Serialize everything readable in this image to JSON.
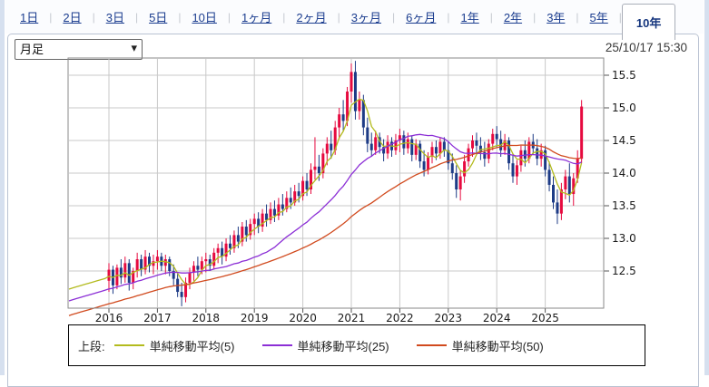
{
  "tabs": {
    "items": [
      {
        "label": "1日",
        "selected": false
      },
      {
        "label": "2日",
        "selected": false
      },
      {
        "label": "3日",
        "selected": false
      },
      {
        "label": "5日",
        "selected": false
      },
      {
        "label": "10日",
        "selected": false
      },
      {
        "label": "1ヶ月",
        "selected": false
      },
      {
        "label": "2ヶ月",
        "selected": false
      },
      {
        "label": "3ヶ月",
        "selected": false
      },
      {
        "label": "6ヶ月",
        "selected": false
      },
      {
        "label": "1年",
        "selected": false
      },
      {
        "label": "2年",
        "selected": false
      },
      {
        "label": "3年",
        "selected": false
      },
      {
        "label": "5年",
        "selected": false
      },
      {
        "label": "10年",
        "selected": true
      }
    ]
  },
  "controls": {
    "interval_select": {
      "value": "月足",
      "options": [
        "月足"
      ]
    },
    "timestamp": "25/10/17 15:30"
  },
  "legend": {
    "prefix": "上段:",
    "items": [
      {
        "label": "単純移動平均(5)",
        "color": "#b3bb1e"
      },
      {
        "label": "単純移動平均(25)",
        "color": "#8c2fd6"
      },
      {
        "label": "単純移動平均(50)",
        "color": "#d14a1e"
      }
    ]
  },
  "chart_data": {
    "type": "candlestick",
    "interval": "monthly",
    "start_month": "2016-01",
    "end_month": "2025-10",
    "x_ticks": [
      "2016",
      "2017",
      "2018",
      "2019",
      "2020",
      "2021",
      "2022",
      "2023",
      "2024",
      "2025"
    ],
    "y_ticks": [
      "12.5",
      "13.0",
      "13.5",
      "14.0",
      "14.5",
      "15.0",
      "15.5"
    ],
    "ylim": [
      11.93,
      15.79
    ],
    "grid": true,
    "legend_position": "bottom",
    "up_color": "#e60a3f",
    "down_color": "#1d3b86",
    "grid_color": "#c9c9c9",
    "border_color": "#8a8a8a",
    "axis_text_color": "#1a1a1a",
    "candles": [
      [
        12.35,
        12.62,
        12.18,
        12.52
      ],
      [
        12.52,
        12.58,
        12.15,
        12.28
      ],
      [
        12.28,
        12.6,
        12.22,
        12.55
      ],
      [
        12.55,
        12.68,
        12.3,
        12.4
      ],
      [
        12.4,
        12.72,
        12.32,
        12.62
      ],
      [
        12.62,
        12.68,
        12.2,
        12.32
      ],
      [
        12.32,
        12.55,
        12.22,
        12.5
      ],
      [
        12.5,
        12.78,
        12.4,
        12.68
      ],
      [
        12.68,
        12.75,
        12.42,
        12.52
      ],
      [
        12.52,
        12.82,
        12.45,
        12.72
      ],
      [
        12.72,
        12.78,
        12.48,
        12.58
      ],
      [
        12.58,
        12.75,
        12.45,
        12.65
      ],
      [
        12.65,
        12.82,
        12.52,
        12.72
      ],
      [
        12.72,
        12.78,
        12.5,
        12.58
      ],
      [
        12.58,
        12.75,
        12.45,
        12.68
      ],
      [
        12.68,
        12.72,
        12.42,
        12.5
      ],
      [
        12.5,
        12.6,
        12.28,
        12.38
      ],
      [
        12.38,
        12.46,
        12.1,
        12.18
      ],
      [
        12.18,
        12.32,
        11.96,
        12.1
      ],
      [
        12.1,
        12.4,
        12.02,
        12.32
      ],
      [
        12.32,
        12.55,
        12.22,
        12.48
      ],
      [
        12.48,
        12.65,
        12.35,
        12.58
      ],
      [
        12.58,
        12.72,
        12.42,
        12.52
      ],
      [
        12.52,
        12.72,
        12.45,
        12.65
      ],
      [
        12.65,
        12.78,
        12.48,
        12.68
      ],
      [
        12.68,
        12.75,
        12.5,
        12.58
      ],
      [
        12.58,
        12.85,
        12.52,
        12.78
      ],
      [
        12.78,
        12.92,
        12.62,
        12.85
      ],
      [
        12.85,
        12.95,
        12.6,
        12.72
      ],
      [
        12.72,
        13.0,
        12.65,
        12.92
      ],
      [
        12.92,
        13.05,
        12.75,
        12.85
      ],
      [
        12.85,
        13.12,
        12.78,
        13.05
      ],
      [
        13.05,
        13.18,
        12.85,
        12.95
      ],
      [
        12.95,
        13.25,
        12.88,
        13.18
      ],
      [
        13.18,
        13.28,
        12.95,
        13.05
      ],
      [
        13.05,
        13.3,
        12.98,
        13.22
      ],
      [
        13.22,
        13.38,
        13.05,
        13.3
      ],
      [
        13.3,
        13.4,
        13.08,
        13.18
      ],
      [
        13.18,
        13.45,
        13.1,
        13.38
      ],
      [
        13.38,
        13.52,
        13.18,
        13.28
      ],
      [
        13.28,
        13.55,
        13.22,
        13.45
      ],
      [
        13.45,
        13.58,
        13.25,
        13.35
      ],
      [
        13.35,
        13.62,
        13.28,
        13.52
      ],
      [
        13.52,
        13.68,
        13.35,
        13.45
      ],
      [
        13.45,
        13.72,
        13.4,
        13.62
      ],
      [
        13.62,
        13.78,
        13.45,
        13.55
      ],
      [
        13.55,
        13.82,
        13.5,
        13.72
      ],
      [
        13.72,
        13.85,
        13.55,
        13.65
      ],
      [
        13.65,
        13.95,
        13.58,
        13.88
      ],
      [
        13.88,
        14.0,
        13.65,
        13.75
      ],
      [
        13.75,
        14.15,
        13.68,
        14.05
      ],
      [
        14.05,
        14.55,
        13.9,
        14.1
      ],
      [
        14.1,
        14.28,
        13.88,
        14.0
      ],
      [
        14.0,
        14.38,
        13.92,
        14.3
      ],
      [
        14.3,
        14.55,
        14.12,
        14.45
      ],
      [
        14.45,
        14.65,
        14.22,
        14.35
      ],
      [
        14.35,
        14.8,
        14.28,
        14.7
      ],
      [
        14.7,
        15.0,
        14.52,
        14.9
      ],
      [
        14.9,
        15.12,
        14.65,
        14.8
      ],
      [
        14.8,
        15.32,
        14.72,
        15.25
      ],
      [
        15.25,
        15.68,
        15.08,
        15.55
      ],
      [
        15.55,
        15.72,
        14.82,
        14.95
      ],
      [
        14.95,
        15.25,
        14.82,
        15.12
      ],
      [
        15.12,
        15.2,
        14.58,
        14.7
      ],
      [
        14.7,
        14.85,
        14.32,
        14.45
      ],
      [
        14.45,
        14.62,
        14.25,
        14.35
      ],
      [
        14.35,
        14.65,
        14.28,
        14.55
      ],
      [
        14.55,
        14.62,
        14.3,
        14.4
      ],
      [
        14.4,
        14.52,
        14.18,
        14.3
      ],
      [
        14.3,
        14.58,
        14.22,
        14.48
      ],
      [
        14.48,
        14.55,
        14.25,
        14.35
      ],
      [
        14.35,
        14.6,
        14.28,
        14.5
      ],
      [
        14.5,
        14.68,
        14.32,
        14.58
      ],
      [
        14.58,
        14.65,
        14.28,
        14.38
      ],
      [
        14.38,
        14.62,
        14.3,
        14.52
      ],
      [
        14.52,
        14.58,
        14.18,
        14.28
      ],
      [
        14.28,
        14.52,
        14.2,
        14.45
      ],
      [
        14.45,
        14.5,
        14.08,
        14.18
      ],
      [
        14.18,
        14.35,
        13.95,
        14.05
      ],
      [
        14.05,
        14.32,
        13.98,
        14.25
      ],
      [
        14.25,
        14.48,
        14.15,
        14.4
      ],
      [
        14.4,
        14.5,
        14.2,
        14.3
      ],
      [
        14.3,
        14.55,
        14.22,
        14.48
      ],
      [
        14.48,
        14.55,
        14.25,
        14.35
      ],
      [
        14.35,
        14.48,
        14.05,
        14.15
      ],
      [
        14.15,
        14.3,
        13.9,
        14.0
      ],
      [
        14.0,
        14.12,
        13.62,
        13.75
      ],
      [
        13.75,
        14.05,
        13.58,
        13.95
      ],
      [
        13.95,
        14.28,
        13.85,
        14.18
      ],
      [
        14.18,
        14.45,
        14.1,
        14.38
      ],
      [
        14.38,
        14.58,
        14.25,
        14.5
      ],
      [
        14.5,
        14.62,
        14.3,
        14.42
      ],
      [
        14.42,
        14.55,
        14.2,
        14.32
      ],
      [
        14.32,
        14.48,
        14.1,
        14.22
      ],
      [
        14.22,
        14.52,
        14.15,
        14.45
      ],
      [
        14.45,
        14.68,
        14.35,
        14.6
      ],
      [
        14.6,
        14.72,
        14.4,
        14.52
      ],
      [
        14.52,
        14.65,
        14.25,
        14.35
      ],
      [
        14.35,
        14.6,
        14.28,
        14.5
      ],
      [
        14.5,
        14.55,
        14.05,
        14.15
      ],
      [
        14.15,
        14.3,
        13.85,
        13.95
      ],
      [
        13.95,
        14.2,
        13.82,
        14.12
      ],
      [
        14.12,
        14.42,
        14.02,
        14.35
      ],
      [
        14.35,
        14.5,
        14.1,
        14.22
      ],
      [
        14.22,
        14.55,
        14.15,
        14.48
      ],
      [
        14.48,
        14.6,
        14.28,
        14.38
      ],
      [
        14.38,
        14.52,
        14.12,
        14.22
      ],
      [
        14.22,
        14.45,
        14.1,
        14.35
      ],
      [
        14.35,
        14.42,
        13.95,
        14.05
      ],
      [
        14.05,
        14.18,
        13.72,
        13.82
      ],
      [
        13.82,
        13.95,
        13.45,
        13.55
      ],
      [
        13.55,
        13.75,
        13.22,
        13.38
      ],
      [
        13.38,
        13.85,
        13.28,
        13.75
      ],
      [
        13.75,
        14.05,
        13.6,
        13.95
      ],
      [
        13.95,
        14.15,
        13.55,
        13.68
      ],
      [
        13.68,
        14.0,
        13.5,
        13.92
      ],
      [
        13.92,
        14.35,
        13.85,
        14.22
      ],
      [
        14.22,
        15.12,
        14.15,
        15.02
      ]
    ],
    "pre_history_closes": [
      11.38,
      11.39,
      11.41,
      11.43,
      11.45,
      11.47,
      11.48,
      11.5,
      11.52,
      11.54,
      11.56,
      11.57,
      11.59,
      11.61,
      11.63,
      11.65,
      11.66,
      11.68,
      11.7,
      11.72,
      11.74,
      11.75,
      11.77,
      11.79,
      11.81,
      11.83,
      11.84,
      11.86,
      11.88,
      11.9,
      11.92,
      11.93,
      11.95,
      11.97,
      11.99,
      12.01,
      12.02,
      12.04,
      12.06,
      12.08,
      12.1,
      12.11,
      12.13,
      12.15,
      12.17,
      12.19,
      12.2,
      12.22,
      12.24,
      12.26,
      12.28,
      12.29,
      12.31,
      12.33,
      12.35,
      12.37,
      12.38,
      12.4,
      12.42
    ],
    "overlays": [
      {
        "name": "単純移動平均(5)",
        "window": 5,
        "color": "#b3bb1e"
      },
      {
        "name": "単純移動平均(25)",
        "window": 25,
        "color": "#8c2fd6"
      },
      {
        "name": "単純移動平均(50)",
        "window": 50,
        "color": "#d14a1e"
      }
    ]
  }
}
